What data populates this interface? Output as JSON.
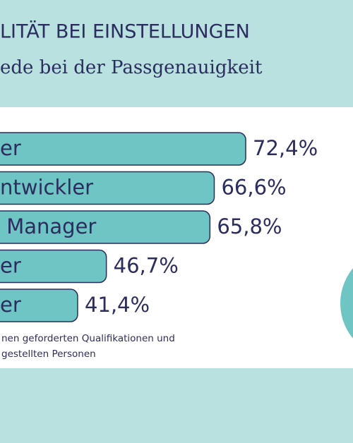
{
  "chart_data": {
    "type": "bar",
    "orientation": "horizontal",
    "title": "LITÄT BEI EINSTELLUNGEN",
    "subtitle": "ede bei der Passgenauigkeit",
    "categories": [
      "er",
      "ntwickler",
      " Manager",
      "er",
      "er"
    ],
    "values": [
      72.4,
      66.6,
      65.8,
      46.7,
      41.4
    ],
    "value_labels": [
      "72,4%",
      "66,6%",
      "65,8%",
      "46,7%",
      "41,4%"
    ],
    "color": "#6fc4c4",
    "footnote": [
      "nen geforderten Qualifikationen und",
      "gestellten Personen"
    ]
  }
}
